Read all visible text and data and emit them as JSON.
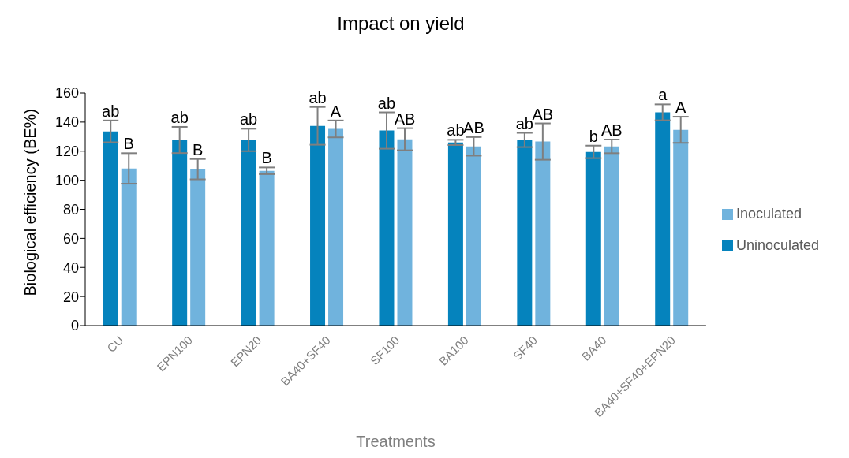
{
  "chart_data": {
    "type": "bar",
    "title": "Impact on yield",
    "xlabel": "Treatments",
    "ylabel": "Biological efficiency (BE%)",
    "categories": [
      "CU",
      "EPN100",
      "EPN20",
      "BA40+SF40",
      "SF100",
      "BA100",
      "SF40",
      "BA40",
      "BA40+SF40+EPN20"
    ],
    "series": [
      {
        "name": "Uninoculated",
        "color": "#0583bd",
        "values": [
          133.6,
          127.7,
          127.7,
          137.4,
          134.2,
          126,
          127.7,
          119.5,
          146.7
        ],
        "errors": [
          7.5,
          9,
          7.7,
          13,
          12.5,
          1.8,
          4.9,
          4.3,
          5.5
        ],
        "value_labels": [
          "ab",
          "ab",
          "ab",
          "ab",
          "ab",
          "ab",
          "ab",
          "b",
          "a"
        ]
      },
      {
        "name": "Inoculated",
        "color": "#70b3dd",
        "values": [
          108.1,
          107.6,
          106.5,
          135.3,
          128.2,
          123.3,
          126.6,
          123.3,
          134.7
        ],
        "errors": [
          10.5,
          7,
          2.3,
          5.8,
          7.6,
          6.4,
          12.5,
          4.7,
          9
        ],
        "value_labels": [
          "B",
          "B",
          "B",
          "A",
          "AB",
          "AB",
          "AB",
          "AB",
          "A"
        ]
      }
    ],
    "ylim": [
      0,
      160
    ],
    "yticks": [
      0,
      20,
      40,
      60,
      80,
      100,
      120,
      140,
      160
    ],
    "grid": false,
    "legend": "right"
  }
}
